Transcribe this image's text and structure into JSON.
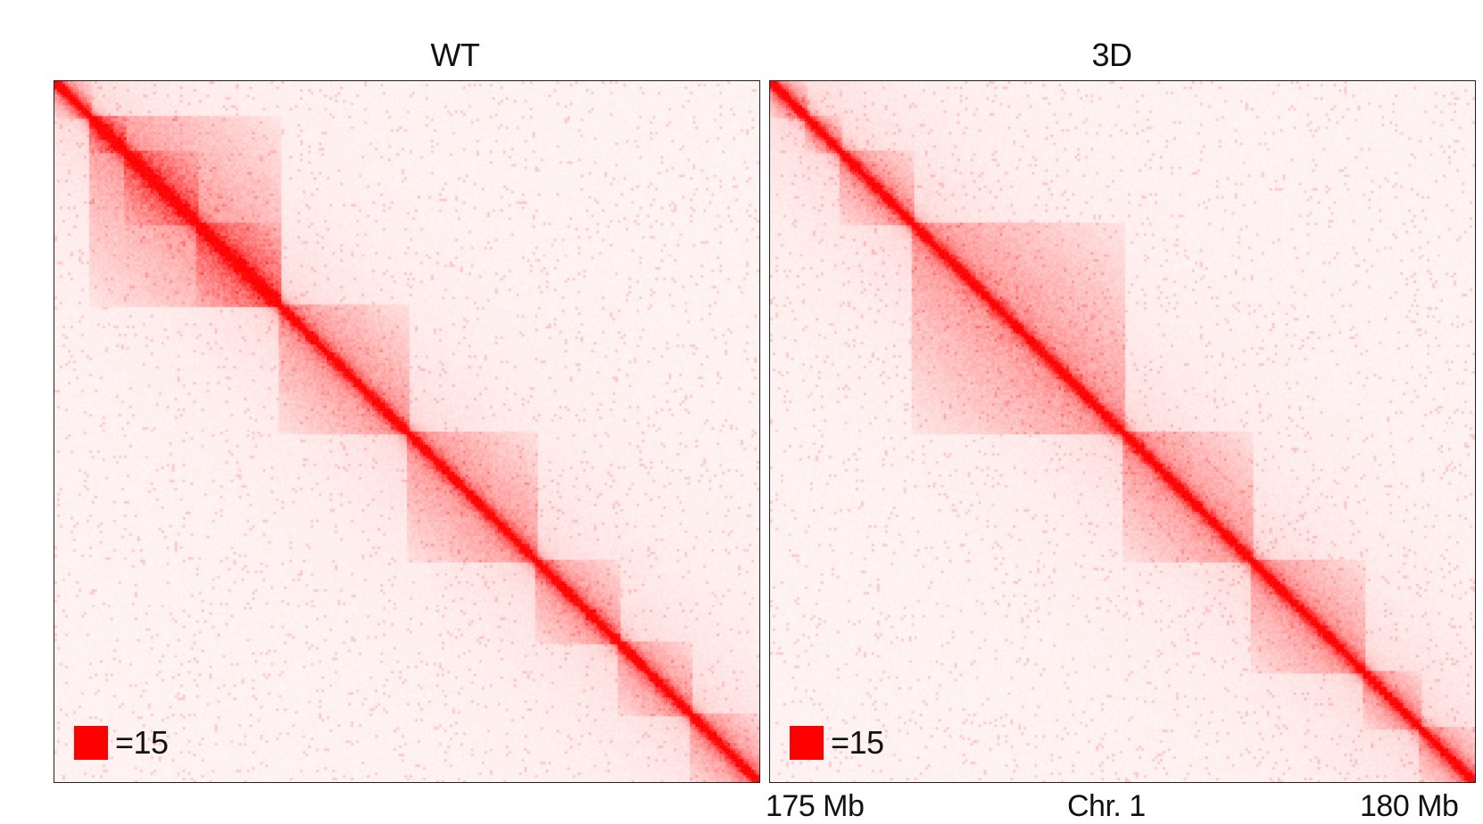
{
  "chart_data": [
    {
      "type": "heatmap",
      "title": "WT",
      "colormap": {
        "min": "#ffffff",
        "max": "#ff0000"
      },
      "scale": {
        "label": "=15",
        "max_value": 15
      },
      "domains_mb": [
        [
          175.0,
          175.25
        ],
        [
          175.25,
          175.5
        ],
        [
          175.5,
          176.0
        ],
        [
          176.0,
          176.6
        ],
        [
          175.25,
          176.6
        ],
        [
          176.6,
          177.5
        ],
        [
          177.5,
          178.4
        ],
        [
          178.4,
          179.0
        ],
        [
          179.0,
          179.5
        ],
        [
          179.5,
          180.0
        ]
      ],
      "x": {
        "start": "175 Mb",
        "end": "180 Mb",
        "label": "Chr. 1"
      }
    },
    {
      "type": "heatmap",
      "title": "3D",
      "colormap": {
        "min": "#ffffff",
        "max": "#ff0000"
      },
      "scale": {
        "label": "=15",
        "max_value": 15
      },
      "domains_mb": [
        [
          175.0,
          175.25
        ],
        [
          175.25,
          175.5
        ],
        [
          175.5,
          176.0
        ],
        [
          176.0,
          177.5
        ],
        [
          177.5,
          178.4
        ],
        [
          178.4,
          179.2
        ],
        [
          179.2,
          179.6
        ],
        [
          179.6,
          180.0
        ]
      ],
      "x": {
        "start": "175 Mb",
        "end": "180 Mb",
        "label": "Chr. 1"
      }
    }
  ]
}
